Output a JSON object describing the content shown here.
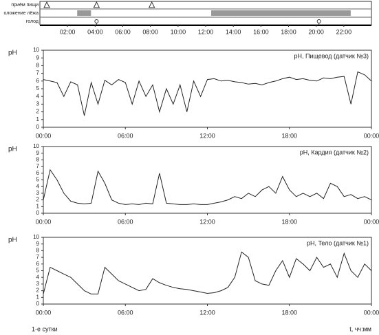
{
  "chart_data": [
    {
      "type": "timeline",
      "xlim": [
        0,
        24
      ],
      "xticks": [
        {
          "value": 2,
          "label": "02:00"
        },
        {
          "value": 4,
          "label": "04:00"
        },
        {
          "value": 6,
          "label": "06:00"
        },
        {
          "value": 8,
          "label": "08:00"
        },
        {
          "value": 10,
          "label": "10:00"
        },
        {
          "value": 12,
          "label": "12:00"
        },
        {
          "value": 14,
          "label": "14:00"
        },
        {
          "value": 16,
          "label": "16:00"
        },
        {
          "value": 18,
          "label": "18:00"
        },
        {
          "value": 20,
          "label": "20:00"
        },
        {
          "value": 22,
          "label": "22:00"
        }
      ],
      "series": [
        {
          "name": "приём пищи",
          "marker": "triangle",
          "values": [
            0.5,
            4.1,
            8.1
          ]
        },
        {
          "name": "оложение лёжа",
          "marker": "interval",
          "color": "#999999",
          "values": [
            [
              2.7,
              3.7
            ],
            [
              12.4,
              22.5
            ]
          ]
        },
        {
          "name": "голод",
          "marker": "circle",
          "values": [
            4.1,
            20.2
          ]
        }
      ]
    },
    {
      "type": "line",
      "ylabel": "pH",
      "xlim": [
        0,
        24
      ],
      "ylim": [
        0,
        10
      ],
      "yticks": [
        0,
        1,
        2,
        3,
        4,
        5,
        6,
        7,
        8,
        9,
        10
      ],
      "xticks": [
        {
          "value": 0,
          "label": "00:00"
        },
        {
          "value": 6,
          "label": "06:00"
        },
        {
          "value": 12,
          "label": "12:00"
        },
        {
          "value": 18,
          "label": "18:00"
        },
        {
          "value": 24,
          "label": "00:00"
        }
      ],
      "x": [
        0,
        0.5,
        1,
        1.5,
        2,
        2.5,
        3,
        3.5,
        4,
        4.5,
        5,
        5.5,
        6,
        6.5,
        7,
        7.5,
        8,
        8.5,
        9,
        9.5,
        10,
        10.5,
        11,
        11.5,
        12,
        12.5,
        13,
        13.5,
        14,
        14.5,
        15,
        15.5,
        16,
        16.5,
        17,
        17.5,
        18,
        18.5,
        19,
        19.5,
        20,
        20.5,
        21,
        21.5,
        22,
        22.5,
        23,
        23.5,
        24
      ],
      "series": [
        {
          "name": "pH, Пищевод (датчик №3)",
          "color": "#222222",
          "values": [
            6.2,
            6,
            5.8,
            4,
            5.9,
            5.5,
            1.5,
            5.8,
            3,
            6.1,
            5.5,
            6.2,
            5.8,
            3,
            6,
            4,
            5.5,
            2,
            5,
            3,
            5.5,
            2,
            6,
            4,
            6.2,
            6.3,
            6,
            6.1,
            5.9,
            5.8,
            5.6,
            5.7,
            5.5,
            5.8,
            6,
            6.3,
            6.5,
            6.2,
            6.3,
            6.1,
            6,
            6.4,
            6.3,
            6.5,
            6.6,
            3,
            7.2,
            6.8,
            6
          ]
        }
      ]
    },
    {
      "type": "line",
      "ylabel": "pH",
      "xlim": [
        0,
        24
      ],
      "ylim": [
        0,
        10
      ],
      "yticks": [
        0,
        1,
        2,
        3,
        4,
        5,
        6,
        7,
        8,
        9,
        10
      ],
      "xticks": [
        {
          "value": 0,
          "label": "00:00"
        },
        {
          "value": 6,
          "label": "06:00"
        },
        {
          "value": 12,
          "label": "12:00"
        },
        {
          "value": 18,
          "label": "18:00"
        },
        {
          "value": 24,
          "label": "00:00"
        }
      ],
      "x": [
        0,
        0.5,
        1,
        1.5,
        2,
        2.5,
        3,
        3.5,
        4,
        4.5,
        5,
        5.5,
        6,
        6.5,
        7,
        7.5,
        8,
        8.5,
        9,
        9.5,
        10,
        10.5,
        11,
        11.5,
        12,
        12.5,
        13,
        13.5,
        14,
        14.5,
        15,
        15.5,
        16,
        16.5,
        17,
        17.5,
        18,
        18.5,
        19,
        19.5,
        20,
        20.5,
        21,
        21.5,
        22,
        22.5,
        23,
        23.5,
        24
      ],
      "series": [
        {
          "name": "pH, Кардия (датчик №2)",
          "color": "#222222",
          "values": [
            2,
            6.5,
            5,
            3,
            1.8,
            1.5,
            1.4,
            1.5,
            6.3,
            4.5,
            2,
            1.5,
            1.3,
            1.4,
            1.3,
            1.5,
            1.4,
            6,
            1.5,
            1.4,
            1.3,
            1.3,
            1.4,
            1.3,
            1.3,
            1.5,
            1.7,
            2,
            2.5,
            2.2,
            3,
            2.5,
            3.5,
            4,
            3,
            5.5,
            3.5,
            2.5,
            3,
            2.5,
            3,
            2.2,
            4.5,
            4,
            2.5,
            2.8,
            2.2,
            2.5,
            2
          ]
        }
      ]
    },
    {
      "type": "line",
      "ylabel": "pH",
      "xlim": [
        0,
        24
      ],
      "ylim": [
        0,
        10
      ],
      "yticks": [
        0,
        1,
        2,
        3,
        4,
        5,
        6,
        7,
        8,
        9,
        10
      ],
      "xticks": [
        {
          "value": 0,
          "label": "00:00"
        },
        {
          "value": 6,
          "label": "06:00"
        },
        {
          "value": 12,
          "label": "12:00"
        },
        {
          "value": 18,
          "label": "18:00"
        },
        {
          "value": 24,
          "label": "00:00"
        }
      ],
      "x": [
        0,
        0.5,
        1,
        1.5,
        2,
        2.5,
        3,
        3.5,
        4,
        4.5,
        5,
        5.5,
        6,
        6.5,
        7,
        7.5,
        8,
        8.5,
        9,
        9.5,
        10,
        10.5,
        11,
        11.5,
        12,
        12.5,
        13,
        13.5,
        14,
        14.5,
        15,
        15.5,
        16,
        16.5,
        17,
        17.5,
        18,
        18.5,
        19,
        19.5,
        20,
        20.5,
        21,
        21.5,
        22,
        22.5,
        23,
        23.5,
        24
      ],
      "note": "1-е сутки",
      "xlabel": "t, чч:мм",
      "series": [
        {
          "name": "pH, Тело (датчик №1)",
          "color": "#222222",
          "values": [
            1.5,
            5.5,
            5,
            4.5,
            4,
            3,
            2,
            1.5,
            1.5,
            5.5,
            4.5,
            3.5,
            3,
            2.5,
            2,
            2.2,
            3.8,
            3.2,
            2.8,
            2.5,
            2.3,
            2.2,
            2,
            1.8,
            1.6,
            1.7,
            2,
            2.5,
            4,
            7.8,
            7,
            3.5,
            3,
            2.8,
            5,
            6.5,
            4,
            6.8,
            6,
            5,
            7,
            5.5,
            6,
            4,
            7.6,
            5,
            4,
            6,
            5
          ]
        }
      ]
    }
  ]
}
